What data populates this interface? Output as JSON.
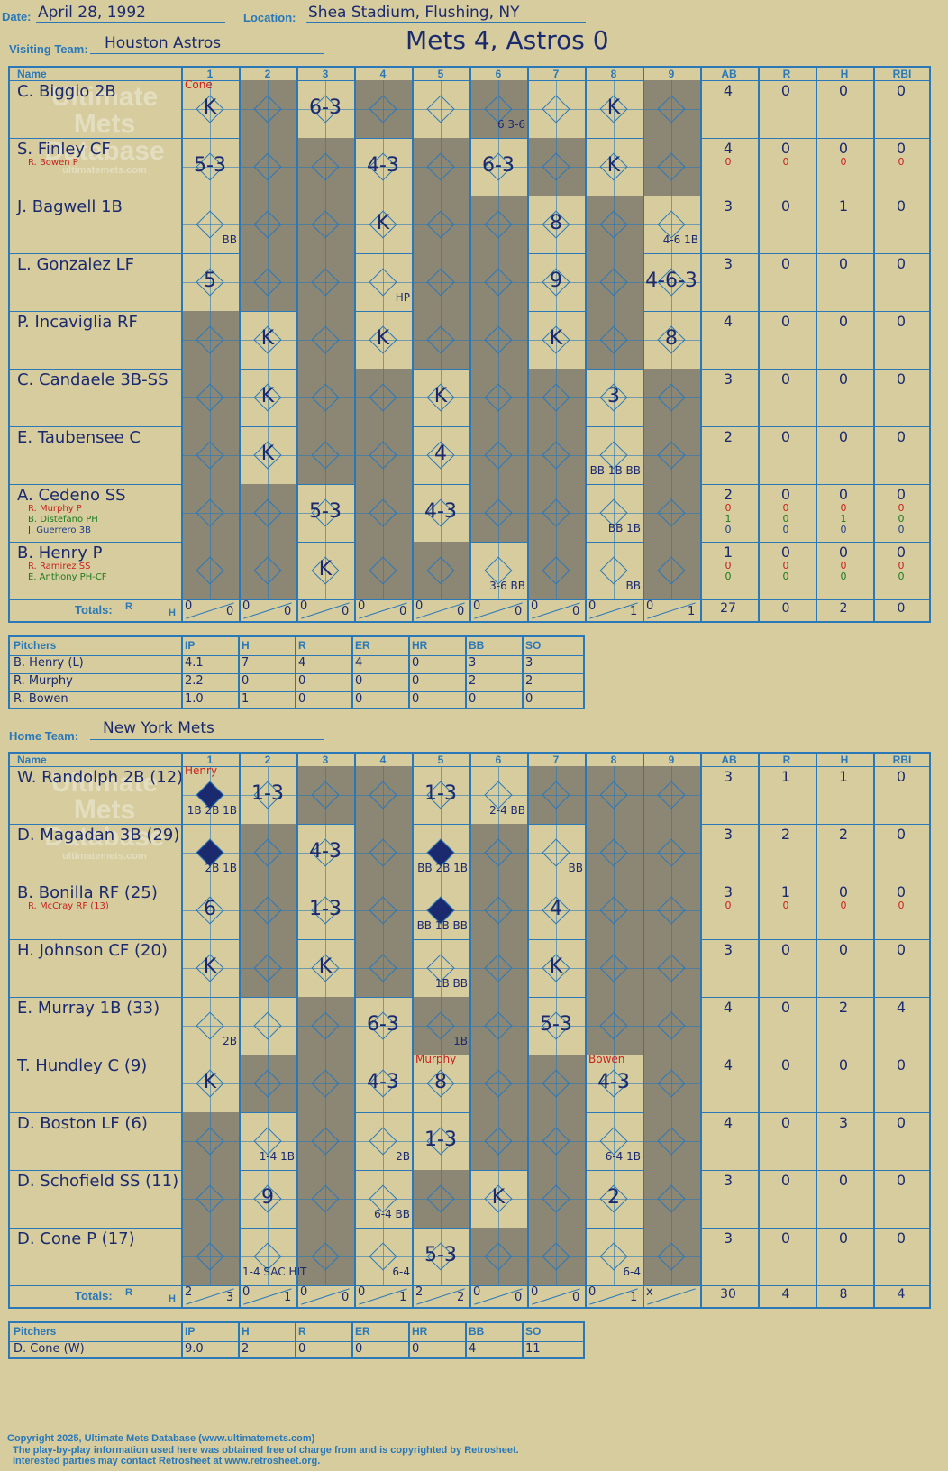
{
  "header": {
    "date_label": "Date:",
    "date": "April 28, 1992",
    "location_label": "Location:",
    "location": "Shea Stadium, Flushing, NY",
    "visiting_label": "Visiting Team:",
    "visiting_team": "Houston Astros",
    "result": "Mets 4, Astros 0",
    "home_label": "Home Team:",
    "home_team": "New York Mets"
  },
  "columns": [
    "Name",
    "1",
    "2",
    "3",
    "4",
    "5",
    "6",
    "7",
    "8",
    "9",
    "AB",
    "R",
    "H",
    "RBI"
  ],
  "watermark": {
    "line1": "Ultimate",
    "line2": "Mets",
    "line3": "Database",
    "line4": "ultimatemets.com"
  },
  "visitors": {
    "rows": [
      {
        "name": "C. Biggio 2B",
        "stats": [
          "4",
          "0",
          "0",
          "0"
        ],
        "plays": [
          {
            "inn": 1,
            "t": "K"
          },
          {
            "inn": 3,
            "t": "6-3"
          },
          {
            "inn": 6,
            "t": "6 3-6",
            "small": true
          },
          {
            "inn": 8,
            "t": "K"
          }
        ],
        "notes": [
          {
            "inn": 1,
            "t": "Cone"
          }
        ]
      },
      {
        "name": "S. Finley CF",
        "sub": [
          {
            "n": "R. Bowen P",
            "c": "red",
            "stats": [
              "0",
              "0",
              "0",
              "0"
            ]
          }
        ],
        "stats": [
          "4",
          "0",
          "0",
          "0"
        ],
        "plays": [
          {
            "inn": 1,
            "t": "5-3"
          },
          {
            "inn": 4,
            "t": "4-3"
          },
          {
            "inn": 6,
            "t": "6-3"
          },
          {
            "inn": 8,
            "t": "K"
          }
        ]
      },
      {
        "name": "J. Bagwell 1B",
        "stats": [
          "3",
          "0",
          "1",
          "0"
        ],
        "plays": [
          {
            "inn": 1,
            "t": "BB",
            "small": true
          },
          {
            "inn": 4,
            "t": "K"
          },
          {
            "inn": 7,
            "t": "8"
          },
          {
            "inn": 9,
            "t": "4-6 1B",
            "small": true
          }
        ]
      },
      {
        "name": "L. Gonzalez LF",
        "stats": [
          "3",
          "0",
          "0",
          "0"
        ],
        "plays": [
          {
            "inn": 1,
            "t": "5"
          },
          {
            "inn": 4,
            "t": "HP",
            "small": true
          },
          {
            "inn": 7,
            "t": "9"
          },
          {
            "inn": 9,
            "t": "4-6-3"
          }
        ]
      },
      {
        "name": "P. Incaviglia RF",
        "stats": [
          "4",
          "0",
          "0",
          "0"
        ],
        "plays": [
          {
            "inn": 2,
            "t": "K"
          },
          {
            "inn": 4,
            "t": "K"
          },
          {
            "inn": 7,
            "t": "K"
          },
          {
            "inn": 9,
            "t": "8"
          }
        ]
      },
      {
        "name": "C. Candaele 3B-SS",
        "stats": [
          "3",
          "0",
          "0",
          "0"
        ],
        "plays": [
          {
            "inn": 2,
            "t": "K"
          },
          {
            "inn": 5,
            "t": "K"
          },
          {
            "inn": 8,
            "t": "3"
          }
        ]
      },
      {
        "name": "E. Taubensee C",
        "stats": [
          "2",
          "0",
          "0",
          "0"
        ],
        "plays": [
          {
            "inn": 2,
            "t": "K"
          },
          {
            "inn": 5,
            "t": "4"
          },
          {
            "inn": 8,
            "t": "BB 1B BB",
            "small": true
          }
        ]
      },
      {
        "name": "A. Cedeno SS",
        "sub": [
          {
            "n": "R. Murphy P",
            "c": "red",
            "stats": [
              "0",
              "0",
              "0",
              "0"
            ]
          },
          {
            "n": "B. Distefano PH",
            "c": "grn",
            "stats": [
              "1",
              "0",
              "1",
              "0"
            ]
          },
          {
            "n": "J. Guerrero 3B",
            "c": "",
            "stats": [
              "0",
              "0",
              "0",
              "0"
            ]
          }
        ],
        "stats": [
          "2",
          "0",
          "0",
          "0"
        ],
        "plays": [
          {
            "inn": 3,
            "t": "5-3"
          },
          {
            "inn": 5,
            "t": "4-3"
          },
          {
            "inn": 8,
            "t": "BB 1B",
            "small": true
          }
        ]
      },
      {
        "name": "B. Henry P",
        "sub": [
          {
            "n": "R. Ramirez SS",
            "c": "red",
            "stats": [
              "0",
              "0",
              "0",
              "0"
            ]
          },
          {
            "n": "E. Anthony PH-CF",
            "c": "grn",
            "stats": [
              "0",
              "0",
              "0",
              "0"
            ]
          }
        ],
        "stats": [
          "1",
          "0",
          "0",
          "0"
        ],
        "plays": [
          {
            "inn": 3,
            "t": "K"
          },
          {
            "inn": 6,
            "t": "3-6 BB",
            "small": true
          },
          {
            "inn": 8,
            "t": "BB",
            "small": true
          }
        ]
      }
    ],
    "totals_label": "Totals:",
    "rh_label_r": "R",
    "rh_label_h": "H",
    "inning_totals": [
      [
        "0",
        "0"
      ],
      [
        "0",
        "0"
      ],
      [
        "0",
        "0"
      ],
      [
        "0",
        "0"
      ],
      [
        "0",
        "0"
      ],
      [
        "0",
        "0"
      ],
      [
        "0",
        "0"
      ],
      [
        "0",
        "1"
      ],
      [
        "0",
        "1"
      ]
    ],
    "totals": [
      "27",
      "0",
      "2",
      "0"
    ]
  },
  "visitor_pitchers": {
    "headers": [
      "Pitchers",
      "IP",
      "H",
      "R",
      "ER",
      "HR",
      "BB",
      "SO"
    ],
    "rows": [
      [
        "B. Henry (L)",
        "4.1",
        "7",
        "4",
        "4",
        "0",
        "3",
        "3"
      ],
      [
        "R. Murphy",
        "2.2",
        "0",
        "0",
        "0",
        "0",
        "2",
        "2"
      ],
      [
        "R. Bowen",
        "1.0",
        "1",
        "0",
        "0",
        "0",
        "0",
        "0"
      ]
    ]
  },
  "home": {
    "rows": [
      {
        "name": "W. Randolph 2B (12)",
        "stats": [
          "3",
          "1",
          "1",
          "0"
        ],
        "plays": [
          {
            "inn": 1,
            "t": "1B 2B 1B",
            "small": true,
            "run": true
          },
          {
            "inn": 2,
            "t": "1-3"
          },
          {
            "inn": 5,
            "t": "1-3"
          },
          {
            "inn": 6,
            "t": "2-4 BB",
            "small": true
          }
        ],
        "notes": [
          {
            "inn": 1,
            "t": "Henry"
          }
        ]
      },
      {
        "name": "D. Magadan 3B (29)",
        "stats": [
          "3",
          "2",
          "2",
          "0"
        ],
        "plays": [
          {
            "inn": 1,
            "t": "2B 1B",
            "small": true,
            "run": true
          },
          {
            "inn": 3,
            "t": "4-3"
          },
          {
            "inn": 5,
            "t": "BB 2B 1B",
            "small": true,
            "run": true
          },
          {
            "inn": 7,
            "t": "BB",
            "small": true
          }
        ]
      },
      {
        "name": "B. Bonilla RF (25)",
        "sub": [
          {
            "n": "R. McCray RF (13)",
            "c": "red",
            "stats": [
              "0",
              "0",
              "0",
              "0"
            ]
          }
        ],
        "stats": [
          "3",
          "1",
          "0",
          "0"
        ],
        "plays": [
          {
            "inn": 1,
            "t": "6"
          },
          {
            "inn": 3,
            "t": "1-3"
          },
          {
            "inn": 5,
            "t": "BB 1B BB",
            "small": true,
            "run": true
          },
          {
            "inn": 7,
            "t": "4"
          }
        ]
      },
      {
        "name": "H. Johnson CF (20)",
        "stats": [
          "3",
          "0",
          "0",
          "0"
        ],
        "plays": [
          {
            "inn": 1,
            "t": "K"
          },
          {
            "inn": 3,
            "t": "K"
          },
          {
            "inn": 5,
            "t": "1B BB",
            "small": true
          },
          {
            "inn": 7,
            "t": "K"
          }
        ]
      },
      {
        "name": "E. Murray 1B (33)",
        "stats": [
          "4",
          "0",
          "2",
          "4"
        ],
        "plays": [
          {
            "inn": 1,
            "t": "2B",
            "small": true
          },
          {
            "inn": 4,
            "t": "6-3"
          },
          {
            "inn": 5,
            "t": "1B",
            "small": true
          },
          {
            "inn": 7,
            "t": "5-3"
          }
        ]
      },
      {
        "name": "T. Hundley C (9)",
        "stats": [
          "4",
          "0",
          "0",
          "0"
        ],
        "plays": [
          {
            "inn": 1,
            "t": "K"
          },
          {
            "inn": 4,
            "t": "4-3"
          },
          {
            "inn": 5,
            "t": "8"
          },
          {
            "inn": 8,
            "t": "4-3"
          }
        ],
        "notes": [
          {
            "inn": 5,
            "t": "Murphy"
          },
          {
            "inn": 8,
            "t": "Bowen"
          }
        ]
      },
      {
        "name": "D. Boston LF (6)",
        "stats": [
          "4",
          "0",
          "3",
          "0"
        ],
        "plays": [
          {
            "inn": 2,
            "t": "1-4 1B",
            "small": true
          },
          {
            "inn": 4,
            "t": "2B",
            "small": true
          },
          {
            "inn": 5,
            "t": "1-3"
          },
          {
            "inn": 8,
            "t": "6-4 1B",
            "small": true
          }
        ]
      },
      {
        "name": "D. Schofield SS (11)",
        "stats": [
          "3",
          "0",
          "0",
          "0"
        ],
        "plays": [
          {
            "inn": 2,
            "t": "9"
          },
          {
            "inn": 4,
            "t": "6-4 BB",
            "small": true
          },
          {
            "inn": 6,
            "t": "K"
          },
          {
            "inn": 8,
            "t": "2"
          }
        ]
      },
      {
        "name": "D. Cone P (17)",
        "stats": [
          "3",
          "0",
          "0",
          "0"
        ],
        "plays": [
          {
            "inn": 2,
            "t": "1-4 SAC HIT",
            "small": true
          },
          {
            "inn": 4,
            "t": "6-4",
            "small": true
          },
          {
            "inn": 5,
            "t": "5-3"
          },
          {
            "inn": 8,
            "t": "6-4",
            "small": true
          }
        ]
      }
    ],
    "totals_label": "Totals:",
    "rh_label_r": "R",
    "rh_label_h": "H",
    "inning_totals": [
      [
        "2",
        "3"
      ],
      [
        "0",
        "1"
      ],
      [
        "0",
        "0"
      ],
      [
        "0",
        "1"
      ],
      [
        "2",
        "2"
      ],
      [
        "0",
        "0"
      ],
      [
        "0",
        "0"
      ],
      [
        "0",
        "1"
      ],
      [
        "x",
        ""
      ]
    ],
    "totals": [
      "30",
      "4",
      "8",
      "4"
    ]
  },
  "home_pitchers": {
    "headers": [
      "Pitchers",
      "IP",
      "H",
      "R",
      "ER",
      "HR",
      "BB",
      "SO"
    ],
    "rows": [
      [
        "D. Cone (W)",
        "9.0",
        "2",
        "0",
        "0",
        "0",
        "4",
        "11"
      ]
    ]
  },
  "footer": {
    "line1": "Copyright 2025, Ultimate Mets Database (www.ultimatemets.com)",
    "line2": "The play-by-play information used here was obtained free of charge from and is copyrighted by Retrosheet.",
    "line3": "Interested parties may contact Retrosheet at www.retrosheet.org."
  }
}
